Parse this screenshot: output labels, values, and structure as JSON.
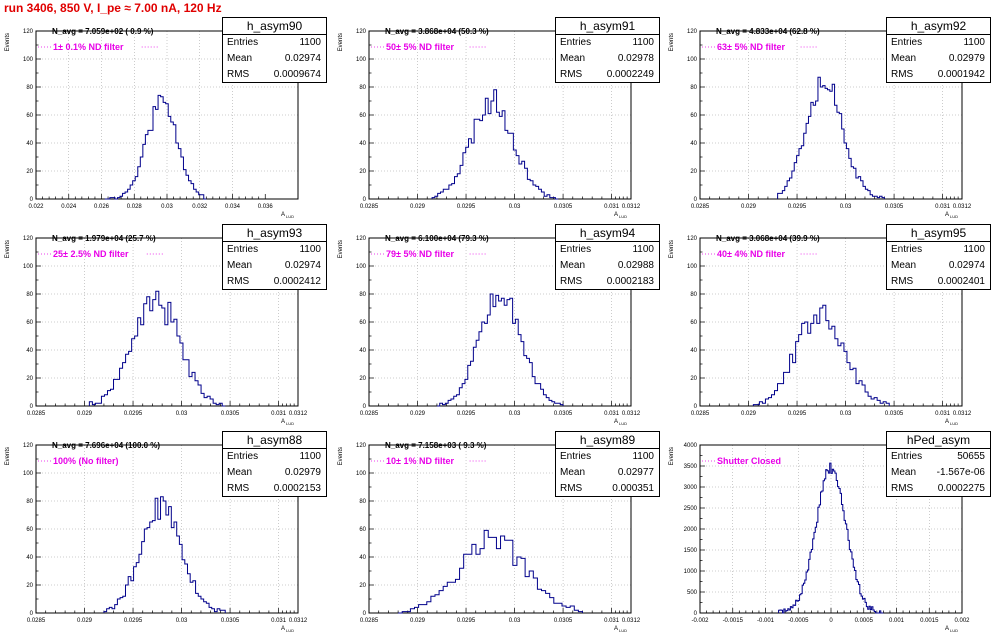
{
  "header": {
    "run_title": "run 3406,   850 V, I_pe ≈ 7.00 nA, 120 Hz"
  },
  "axis_labels": {
    "x": "A",
    "x_sub": "LUD",
    "y": "Events"
  },
  "stat_labels": {
    "entries": "Entries",
    "mean": "Mean",
    "rms": "RMS"
  },
  "chart_data": [
    {
      "type": "histogram",
      "hist_name": "h_asym90",
      "navg_text": "N_avg = 7.059e+02 ( 0.9 %)",
      "filter_text": "1± 0.1% ND filter",
      "entries": "1100",
      "mean": "0.02974",
      "rms": "0.0009674",
      "xlim": [
        0.022,
        0.038
      ],
      "ylim": [
        0,
        120
      ],
      "xticks": [
        "0.022",
        "0.024",
        "0.026",
        "0.028",
        "0.03",
        "0.032",
        "0.034",
        "0.036"
      ],
      "yticks": [
        "0",
        "20",
        "40",
        "60",
        "80",
        "100",
        "120"
      ],
      "mu": 0.0297,
      "sigma": 0.00095,
      "peak": 70,
      "nbins": 40,
      "noise": 0.12,
      "seed": 11,
      "bin_range": [
        0.0262,
        0.0324
      ]
    },
    {
      "type": "histogram",
      "hist_name": "h_asym91",
      "navg_text": "N_avg = 3.868e+04 (50.3 %)",
      "filter_text": "50± 5% ND filter",
      "entries": "1100",
      "mean": "0.02978",
      "rms": "0.0002249",
      "xlim": [
        0.0285,
        0.0312
      ],
      "ylim": [
        0,
        120
      ],
      "xticks": [
        "0.0285",
        "0.029",
        "0.0295",
        "0.03",
        "0.0305",
        "0.031",
        "0.0312"
      ],
      "yticks": [
        "0",
        "20",
        "40",
        "60",
        "80",
        "100",
        "120"
      ],
      "mu": 0.02977,
      "sigma": 0.00022,
      "peak": 70,
      "nbins": 45,
      "noise": 0.14,
      "seed": 23,
      "bin_range": [
        0.02915,
        0.03045
      ]
    },
    {
      "type": "histogram",
      "hist_name": "h_asym92",
      "navg_text": "N_avg = 4.833e+04 (62.8 %)",
      "filter_text": "63± 5% ND filter",
      "entries": "1100",
      "mean": "0.02979",
      "rms": "0.0001942",
      "xlim": [
        0.0285,
        0.0312
      ],
      "ylim": [
        0,
        120
      ],
      "xticks": [
        "0.0285",
        "0.029",
        "0.0295",
        "0.03",
        "0.0305",
        "0.031",
        "0.0312"
      ],
      "yticks": [
        "0",
        "20",
        "40",
        "60",
        "80",
        "100",
        "120"
      ],
      "mu": 0.02978,
      "sigma": 0.00019,
      "peak": 85,
      "nbins": 45,
      "noise": 0.12,
      "seed": 37,
      "bin_range": [
        0.0293,
        0.0304
      ]
    },
    {
      "type": "histogram",
      "hist_name": "h_asym93",
      "navg_text": "N_avg = 1.979e+04 (25.7 %)",
      "filter_text": "25± 2.5% ND filter",
      "entries": "1100",
      "mean": "0.02974",
      "rms": "0.0002412",
      "xlim": [
        0.0285,
        0.0312
      ],
      "ylim": [
        0,
        120
      ],
      "xticks": [
        "0.0285",
        "0.029",
        "0.0295",
        "0.03",
        "0.0305",
        "0.031",
        "0.0312"
      ],
      "yticks": [
        "0",
        "20",
        "40",
        "60",
        "80",
        "100",
        "120"
      ],
      "mu": 0.02974,
      "sigma": 0.00024,
      "peak": 75,
      "nbins": 45,
      "noise": 0.16,
      "seed": 41,
      "bin_range": [
        0.02905,
        0.03045
      ]
    },
    {
      "type": "histogram",
      "hist_name": "h_asym94",
      "navg_text": "N_avg = 6.100e+04 (79.3 %)",
      "filter_text": "79± 5% ND filter",
      "entries": "1100",
      "mean": "0.02988",
      "rms": "0.0002183",
      "xlim": [
        0.0285,
        0.0312
      ],
      "ylim": [
        0,
        120
      ],
      "xticks": [
        "0.0285",
        "0.029",
        "0.0295",
        "0.03",
        "0.0305",
        "0.031",
        "0.0312"
      ],
      "yticks": [
        "0",
        "20",
        "40",
        "60",
        "80",
        "100",
        "120"
      ],
      "mu": 0.02985,
      "sigma": 0.00021,
      "peak": 86,
      "nbins": 45,
      "noise": 0.14,
      "seed": 53,
      "bin_range": [
        0.0292,
        0.0305
      ]
    },
    {
      "type": "histogram",
      "hist_name": "h_asym95",
      "navg_text": "N_avg = 3.068e+04 (39.9 %)",
      "filter_text": "40± 4% ND filter",
      "entries": "1100",
      "mean": "0.02974",
      "rms": "0.0002401",
      "xlim": [
        0.0285,
        0.0312
      ],
      "ylim": [
        0,
        120
      ],
      "xticks": [
        "0.0285",
        "0.029",
        "0.0295",
        "0.03",
        "0.0305",
        "0.031",
        "0.0312"
      ],
      "yticks": [
        "0",
        "20",
        "40",
        "60",
        "80",
        "100",
        "120"
      ],
      "mu": 0.02974,
      "sigma": 0.00024,
      "peak": 70,
      "nbins": 45,
      "noise": 0.16,
      "seed": 67,
      "bin_range": [
        0.02905,
        0.03045
      ]
    },
    {
      "type": "histogram",
      "hist_name": "h_asym88",
      "navg_text": "N_avg = 7.696e+04 (100.0 %)",
      "filter_text": "100% (No filter)",
      "entries": "1100",
      "mean": "0.02979",
      "rms": "0.0002153",
      "xlim": [
        0.0285,
        0.0312
      ],
      "ylim": [
        0,
        120
      ],
      "xticks": [
        "0.0285",
        "0.029",
        "0.0295",
        "0.03",
        "0.0305",
        "0.031",
        "0.0312"
      ],
      "yticks": [
        "0",
        "20",
        "40",
        "60",
        "80",
        "100",
        "120"
      ],
      "mu": 0.02979,
      "sigma": 0.00021,
      "peak": 76,
      "nbins": 45,
      "noise": 0.14,
      "seed": 79,
      "bin_range": [
        0.0292,
        0.03045
      ]
    },
    {
      "type": "histogram",
      "hist_name": "h_asym89",
      "navg_text": "N_avg = 7.158e+03 ( 9.3 %)",
      "filter_text": "10± 1% ND filter",
      "entries": "1100",
      "mean": "0.02977",
      "rms": "0.000351",
      "xlim": [
        0.0285,
        0.0312
      ],
      "ylim": [
        0,
        120
      ],
      "xticks": [
        "0.0285",
        "0.029",
        "0.0295",
        "0.03",
        "0.0305",
        "0.031",
        "0.0312"
      ],
      "yticks": [
        "0",
        "20",
        "40",
        "60",
        "80",
        "100",
        "120"
      ],
      "mu": 0.02977,
      "sigma": 0.00035,
      "peak": 52,
      "nbins": 45,
      "noise": 0.18,
      "seed": 97,
      "bin_range": [
        0.0288,
        0.0307
      ]
    },
    {
      "type": "histogram",
      "hist_name": "hPed_asym",
      "navg_text": "",
      "filter_text": "Shutter Closed",
      "entries": "50655",
      "mean": "-1.567e-06",
      "rms": "0.0002275",
      "xlim": [
        -0.002,
        0.002
      ],
      "ylim": [
        0,
        4000
      ],
      "xticks": [
        "-0.002",
        "-0.0015",
        "-0.001",
        "-0.0005",
        "0",
        "0.0005",
        "0.001",
        "0.0015",
        "0.002"
      ],
      "yticks": [
        "0",
        "500",
        "1000",
        "1500",
        "2000",
        "2500",
        "3000",
        "3500",
        "4000"
      ],
      "mu": 0.0,
      "sigma": 0.00023,
      "peak": 3450,
      "nbins": 80,
      "noise": 0.03,
      "seed": 7,
      "bin_range": [
        -0.0008,
        0.0008
      ]
    }
  ]
}
